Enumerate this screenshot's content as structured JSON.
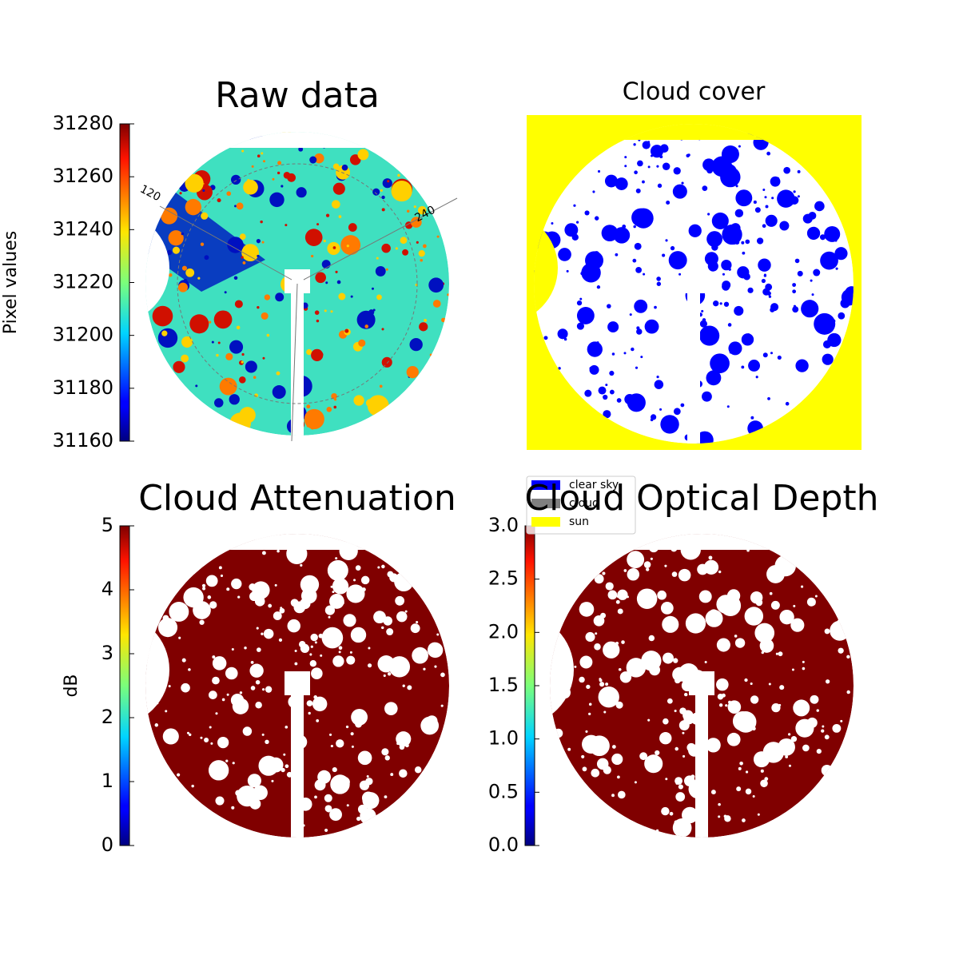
{
  "chart_data": [
    {
      "type": "image",
      "title": "Raw data",
      "ylabel": "Pixel values",
      "colormap": "jet",
      "ylim": [
        31160,
        31280
      ],
      "yticks": [
        31160,
        31180,
        31200,
        31220,
        31240,
        31260,
        31280
      ],
      "annotations": [
        "120",
        "240"
      ]
    },
    {
      "type": "image",
      "title": "Cloud cover",
      "series": [
        {
          "name": "clear sky",
          "color": "#0000ff"
        },
        {
          "name": "cloud",
          "color": "#808080"
        },
        {
          "name": "sun",
          "color": "#ffff00"
        }
      ]
    },
    {
      "type": "image",
      "title": "Cloud Attenuation",
      "ylabel": "dB",
      "colormap": "jet",
      "ylim": [
        0,
        5
      ],
      "yticks": [
        0,
        1,
        2,
        3,
        4,
        5
      ]
    },
    {
      "type": "image",
      "title": "Cloud Optical Depth",
      "colormap": "jet",
      "ylim": [
        0,
        3
      ],
      "yticks": [
        {
          "value": 0,
          "label": "0.0"
        },
        0.5,
        {
          "value": 1,
          "label": "1.0"
        },
        1.5,
        {
          "value": 2,
          "label": "2.0"
        },
        2.5,
        {
          "value": 3,
          "label": "3.0"
        }
      ]
    }
  ]
}
